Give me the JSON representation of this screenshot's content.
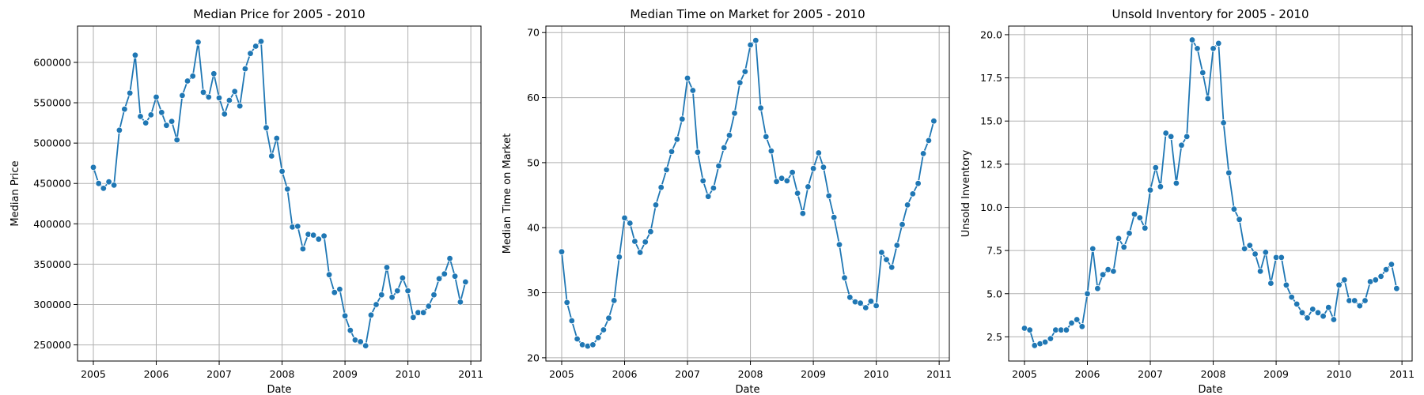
{
  "chart_data": [
    {
      "type": "line",
      "title": "Median Price for 2005 - 2010",
      "xlabel": "Date",
      "ylabel": "Median Price",
      "xlim": [
        "2004-10-01",
        "2011-03-01"
      ],
      "ylim": [
        230000,
        645000
      ],
      "xticks": [
        "2005",
        "2006",
        "2007",
        "2008",
        "2009",
        "2010",
        "2011"
      ],
      "yticks": [
        250000,
        300000,
        350000,
        400000,
        450000,
        500000,
        550000,
        600000
      ],
      "grid": true,
      "x": [
        "2005-01",
        "2005-02",
        "2005-03",
        "2005-04",
        "2005-05",
        "2005-06",
        "2005-07",
        "2005-08",
        "2005-09",
        "2005-10",
        "2005-11",
        "2005-12",
        "2006-01",
        "2006-02",
        "2006-03",
        "2006-04",
        "2006-05",
        "2006-06",
        "2006-07",
        "2006-08",
        "2006-09",
        "2006-10",
        "2006-11",
        "2006-12",
        "2007-01",
        "2007-02",
        "2007-03",
        "2007-04",
        "2007-05",
        "2007-06",
        "2007-07",
        "2007-08",
        "2007-09",
        "2007-10",
        "2007-11",
        "2007-12",
        "2008-01",
        "2008-02",
        "2008-03",
        "2008-04",
        "2008-05",
        "2008-06",
        "2008-07",
        "2008-08",
        "2008-09",
        "2008-10",
        "2008-11",
        "2008-12",
        "2009-01",
        "2009-02",
        "2009-03",
        "2009-04",
        "2009-05",
        "2009-06",
        "2009-07",
        "2009-08",
        "2009-09",
        "2009-10",
        "2009-11",
        "2009-12",
        "2010-01",
        "2010-02",
        "2010-03",
        "2010-04",
        "2010-05",
        "2010-06",
        "2010-07",
        "2010-08",
        "2010-09",
        "2010-10",
        "2010-11",
        "2010-12"
      ],
      "values": [
        470000,
        450000,
        444000,
        452000,
        448000,
        516000,
        542000,
        562000,
        609000,
        533000,
        525000,
        535000,
        557000,
        538000,
        522000,
        527000,
        504000,
        559000,
        577000,
        583000,
        625000,
        563000,
        557000,
        586000,
        556000,
        536000,
        553000,
        564000,
        546000,
        592000,
        611000,
        620000,
        626000,
        519000,
        484000,
        506000,
        465000,
        443000,
        396000,
        397000,
        369000,
        387000,
        386000,
        381000,
        385000,
        337000,
        315000,
        319000,
        286000,
        268000,
        256000,
        254000,
        249000,
        287000,
        300000,
        312000,
        346000,
        309000,
        317000,
        333000,
        317000,
        284000,
        290000,
        290000,
        298000,
        312000,
        332000,
        338000,
        357000,
        335000,
        303000,
        328000
      ]
    },
    {
      "type": "line",
      "title": "Median Time on Market for 2005 - 2010",
      "xlabel": "Date",
      "ylabel": "Median Time on Market",
      "xlim": [
        "2004-10-01",
        "2011-03-01"
      ],
      "ylim": [
        19.5,
        71
      ],
      "xticks": [
        "2005",
        "2006",
        "2007",
        "2008",
        "2009",
        "2010",
        "2011"
      ],
      "yticks": [
        20,
        30,
        40,
        50,
        60,
        70
      ],
      "grid": true,
      "x": [
        "2005-01",
        "2005-02",
        "2005-03",
        "2005-04",
        "2005-05",
        "2005-06",
        "2005-07",
        "2005-08",
        "2005-09",
        "2005-10",
        "2005-11",
        "2005-12",
        "2006-01",
        "2006-02",
        "2006-03",
        "2006-04",
        "2006-05",
        "2006-06",
        "2006-07",
        "2006-08",
        "2006-09",
        "2006-10",
        "2006-11",
        "2006-12",
        "2007-01",
        "2007-02",
        "2007-03",
        "2007-04",
        "2007-05",
        "2007-06",
        "2007-07",
        "2007-08",
        "2007-09",
        "2007-10",
        "2007-11",
        "2007-12",
        "2008-01",
        "2008-02",
        "2008-03",
        "2008-04",
        "2008-05",
        "2008-06",
        "2008-07",
        "2008-08",
        "2008-09",
        "2008-10",
        "2008-11",
        "2008-12",
        "2009-01",
        "2009-02",
        "2009-03",
        "2009-04",
        "2009-05",
        "2009-06",
        "2009-07",
        "2009-08",
        "2009-09",
        "2009-10",
        "2009-11",
        "2009-12",
        "2010-01",
        "2010-02",
        "2010-03",
        "2010-04",
        "2010-05",
        "2010-06",
        "2010-07",
        "2010-08",
        "2010-09",
        "2010-10",
        "2010-11",
        "2010-12"
      ],
      "values": [
        36.3,
        28.5,
        25.7,
        22.9,
        22.0,
        21.8,
        22.0,
        23.1,
        24.3,
        26.1,
        28.8,
        35.5,
        41.5,
        40.7,
        37.9,
        36.2,
        37.8,
        39.4,
        43.5,
        46.2,
        48.9,
        51.7,
        53.6,
        56.7,
        63.0,
        61.1,
        51.6,
        47.2,
        44.8,
        46.1,
        49.5,
        52.3,
        54.2,
        57.6,
        62.3,
        64.0,
        68.1,
        68.8,
        58.4,
        54.0,
        51.8,
        47.1,
        47.6,
        47.2,
        48.5,
        45.3,
        42.2,
        46.3,
        49.1,
        51.5,
        49.3,
        44.9,
        41.6,
        37.4,
        32.3,
        29.3,
        28.6,
        28.4,
        27.7,
        28.7,
        28.0,
        36.2,
        35.1,
        33.9,
        37.3,
        40.5,
        43.5,
        45.2,
        46.8,
        51.4,
        53.4,
        56.4
      ]
    },
    {
      "type": "line",
      "title": "Unsold Inventory for 2005 - 2010",
      "xlabel": "Date",
      "ylabel": "Unsold Inventory",
      "xlim": [
        "2004-10-01",
        "2011-03-01"
      ],
      "ylim": [
        1.1,
        20.5
      ],
      "xticks": [
        "2005",
        "2006",
        "2007",
        "2008",
        "2009",
        "2010",
        "2011"
      ],
      "yticks": [
        "2.5",
        "5.0",
        "7.5",
        "10.0",
        "12.5",
        "15.0",
        "17.5",
        "20.0"
      ],
      "grid": true,
      "x": [
        "2005-01",
        "2005-02",
        "2005-03",
        "2005-04",
        "2005-05",
        "2005-06",
        "2005-07",
        "2005-08",
        "2005-09",
        "2005-10",
        "2005-11",
        "2005-12",
        "2006-01",
        "2006-02",
        "2006-03",
        "2006-04",
        "2006-05",
        "2006-06",
        "2006-07",
        "2006-08",
        "2006-09",
        "2006-10",
        "2006-11",
        "2006-12",
        "2007-01",
        "2007-02",
        "2007-03",
        "2007-04",
        "2007-05",
        "2007-06",
        "2007-07",
        "2007-08",
        "2007-09",
        "2007-10",
        "2007-11",
        "2007-12",
        "2008-01",
        "2008-02",
        "2008-03",
        "2008-04",
        "2008-05",
        "2008-06",
        "2008-07",
        "2008-08",
        "2008-09",
        "2008-10",
        "2008-11",
        "2008-12",
        "2009-01",
        "2009-02",
        "2009-03",
        "2009-04",
        "2009-05",
        "2009-06",
        "2009-07",
        "2009-08",
        "2009-09",
        "2009-10",
        "2009-11",
        "2009-12",
        "2010-01",
        "2010-02",
        "2010-03",
        "2010-04",
        "2010-05",
        "2010-06",
        "2010-07",
        "2010-08",
        "2010-09",
        "2010-10",
        "2010-11",
        "2010-12"
      ],
      "values": [
        3.0,
        2.9,
        2.0,
        2.1,
        2.2,
        2.4,
        2.9,
        2.9,
        2.9,
        3.3,
        3.5,
        3.1,
        5.0,
        7.6,
        5.3,
        6.1,
        6.4,
        6.3,
        8.2,
        7.7,
        8.5,
        9.6,
        9.4,
        8.8,
        11.0,
        12.3,
        11.2,
        14.3,
        14.1,
        11.4,
        13.6,
        14.1,
        19.7,
        19.2,
        17.8,
        16.3,
        19.2,
        19.5,
        14.9,
        12.0,
        9.9,
        9.3,
        7.6,
        7.8,
        7.3,
        6.3,
        7.4,
        5.6,
        7.1,
        7.1,
        5.5,
        4.8,
        4.4,
        3.9,
        3.6,
        4.1,
        3.9,
        3.7,
        4.2,
        3.5,
        5.5,
        5.8,
        4.6,
        4.6,
        4.3,
        4.6,
        5.7,
        5.8,
        6.0,
        6.4,
        6.7,
        5.3
      ]
    }
  ],
  "colors": {
    "line": "#1f77b4",
    "grid": "#b0b0b0"
  }
}
